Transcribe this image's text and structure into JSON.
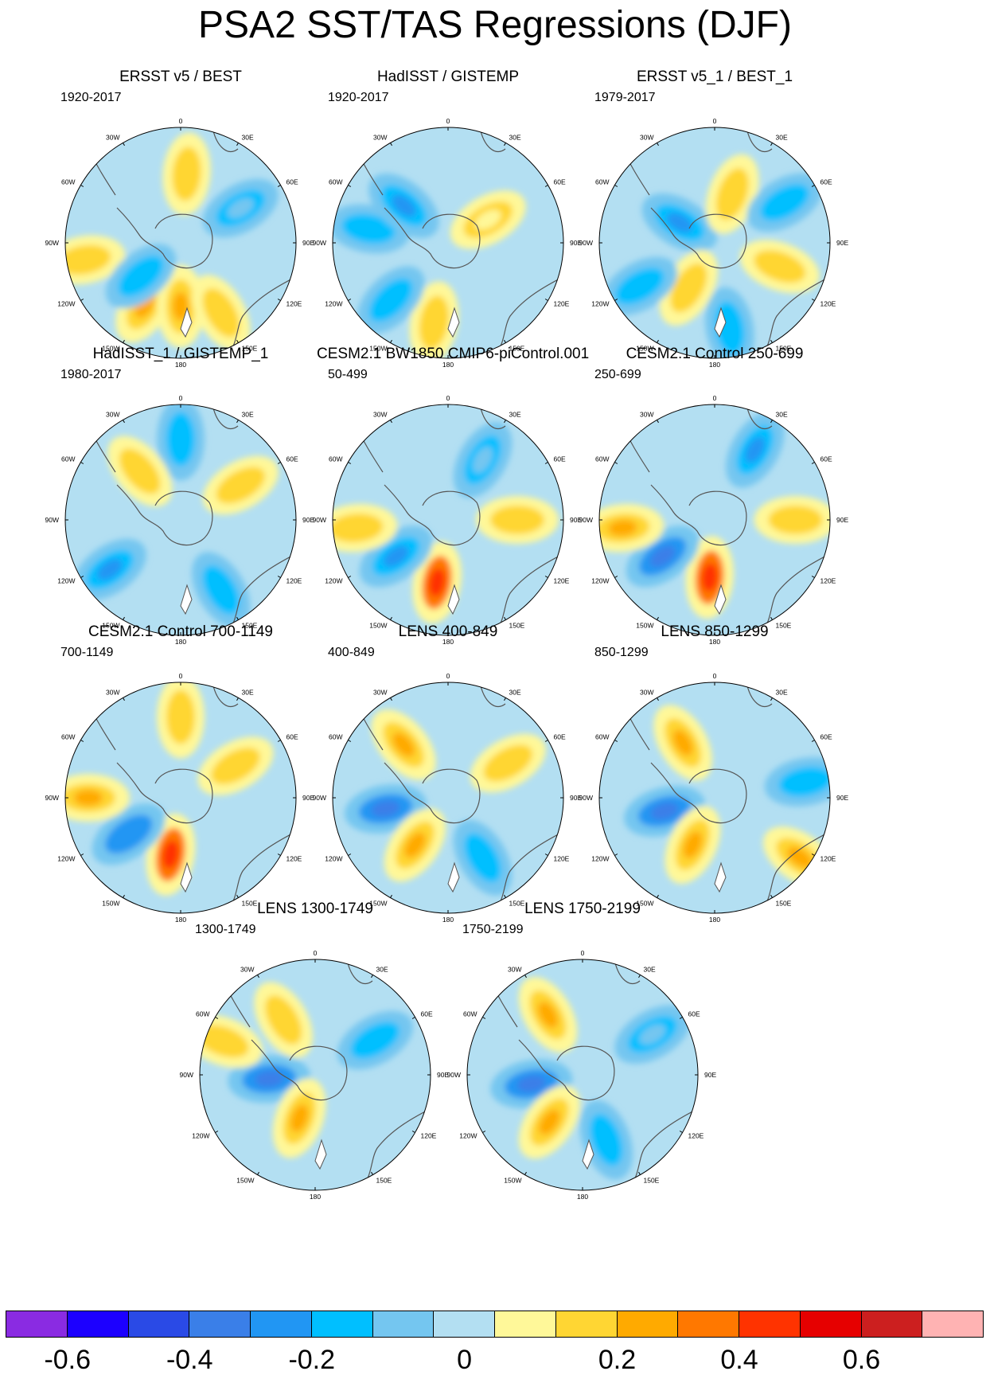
{
  "title": "PSA2 SST/TAS Regressions (DJF)",
  "chart_data": [
    {
      "type": "heatmap",
      "projection": "south polar stereographic",
      "title": "ERSST v5 / BEST",
      "period": "1920-2017",
      "longitude_labels": [
        "0",
        "30E",
        "60E",
        "90E",
        "120E",
        "150E",
        "180",
        "150W",
        "120W",
        "90W",
        "60W",
        "30W"
      ],
      "anomalies": [
        {
          "lon": 210,
          "colat": 0.62,
          "value": 0.2
        },
        {
          "lon": 180,
          "colat": 0.55,
          "value": 0.25
        },
        {
          "lon": 150,
          "colat": 0.7,
          "value": 0.15
        },
        {
          "lon": 260,
          "colat": 0.85,
          "value": 0.15
        },
        {
          "lon": 230,
          "colat": 0.45,
          "value": -0.2
        },
        {
          "lon": 5,
          "colat": 0.6,
          "value": 0.15
        },
        {
          "lon": 60,
          "colat": 0.6,
          "value": -0.1
        }
      ]
    },
    {
      "type": "heatmap",
      "projection": "south polar stereographic",
      "title": "HadISST / GISTEMP",
      "period": "1920-2017",
      "longitude_labels": [
        "0",
        "30E",
        "60E",
        "90E",
        "120E",
        "150E",
        "180",
        "150W",
        "120W",
        "90W",
        "60W",
        "30W"
      ],
      "anomalies": [
        {
          "lon": 190,
          "colat": 0.7,
          "value": 0.15
        },
        {
          "lon": 225,
          "colat": 0.7,
          "value": -0.2
        },
        {
          "lon": 280,
          "colat": 0.7,
          "value": -0.2
        },
        {
          "lon": 310,
          "colat": 0.5,
          "value": -0.25
        },
        {
          "lon": 60,
          "colat": 0.4,
          "value": 0.05
        }
      ]
    },
    {
      "type": "heatmap",
      "projection": "south polar stereographic",
      "title": "ERSST v5_1 / BEST_1",
      "period": "1979-2017",
      "longitude_labels": [
        "0",
        "30E",
        "60E",
        "90E",
        "120E",
        "150E",
        "180",
        "150W",
        "120W",
        "90W",
        "60W",
        "30W"
      ],
      "anomalies": [
        {
          "lon": 300,
          "colat": 0.35,
          "value": -0.25
        },
        {
          "lon": 20,
          "colat": 0.45,
          "value": 0.15
        },
        {
          "lon": 60,
          "colat": 0.7,
          "value": -0.15
        },
        {
          "lon": 110,
          "colat": 0.6,
          "value": 0.15
        },
        {
          "lon": 170,
          "colat": 0.75,
          "value": -0.2
        },
        {
          "lon": 210,
          "colat": 0.45,
          "value": 0.15
        },
        {
          "lon": 240,
          "colat": 0.75,
          "value": -0.15
        }
      ]
    },
    {
      "type": "heatmap",
      "projection": "south polar stereographic",
      "title": "HadISST_1 / GISTEMP_1",
      "period": "1980-2017",
      "longitude_labels": [
        "0",
        "30E",
        "60E",
        "90E",
        "120E",
        "150E",
        "180",
        "150W",
        "120W",
        "90W",
        "60W",
        "30W"
      ],
      "anomalies": [
        {
          "lon": 0,
          "colat": 0.7,
          "value": -0.2
        },
        {
          "lon": 320,
          "colat": 0.55,
          "value": 0.15
        },
        {
          "lon": 235,
          "colat": 0.75,
          "value": -0.25
        },
        {
          "lon": 150,
          "colat": 0.7,
          "value": -0.2
        },
        {
          "lon": 60,
          "colat": 0.6,
          "value": 0.1
        }
      ]
    },
    {
      "type": "heatmap",
      "projection": "south polar stereographic",
      "title": "CESM2.1 BW1850 CMIP6-piControl.001",
      "period": "50-499",
      "longitude_labels": [
        "0",
        "30E",
        "60E",
        "90E",
        "120E",
        "150E",
        "180",
        "150W",
        "120W",
        "90W",
        "60W",
        "30W"
      ],
      "anomalies": [
        {
          "lon": 190,
          "colat": 0.55,
          "value": 0.45
        },
        {
          "lon": 235,
          "colat": 0.55,
          "value": -0.25
        },
        {
          "lon": 265,
          "colat": 0.8,
          "value": 0.15
        },
        {
          "lon": 90,
          "colat": 0.6,
          "value": 0.15
        },
        {
          "lon": 30,
          "colat": 0.6,
          "value": -0.1
        }
      ]
    },
    {
      "type": "heatmap",
      "projection": "south polar stereographic",
      "title": "CESM2.1 Control 250-699",
      "period": "250-699",
      "longitude_labels": [
        "0",
        "30E",
        "60E",
        "90E",
        "120E",
        "150E",
        "180",
        "150W",
        "120W",
        "90W",
        "60W",
        "30W"
      ],
      "anomalies": [
        {
          "lon": 185,
          "colat": 0.5,
          "value": 0.45
        },
        {
          "lon": 235,
          "colat": 0.55,
          "value": -0.35
        },
        {
          "lon": 265,
          "colat": 0.8,
          "value": 0.2
        },
        {
          "lon": 30,
          "colat": 0.7,
          "value": -0.25
        },
        {
          "lon": 90,
          "colat": 0.7,
          "value": 0.15
        }
      ]
    },
    {
      "type": "heatmap",
      "projection": "south polar stereographic",
      "title": "CESM2.1 Control 700-1149",
      "period": "700-1149",
      "longitude_labels": [
        "0",
        "30E",
        "60E",
        "90E",
        "120E",
        "150E",
        "180",
        "150W",
        "120W",
        "90W",
        "60W",
        "30W"
      ],
      "anomalies": [
        {
          "lon": 190,
          "colat": 0.5,
          "value": 0.45
        },
        {
          "lon": 235,
          "colat": 0.55,
          "value": -0.3
        },
        {
          "lon": 270,
          "colat": 0.8,
          "value": 0.2
        },
        {
          "lon": 60,
          "colat": 0.55,
          "value": 0.1
        },
        {
          "lon": 0,
          "colat": 0.7,
          "value": 0.1
        }
      ]
    },
    {
      "type": "heatmap",
      "projection": "south polar stereographic",
      "title": "LENS 400-849",
      "period": "400-849",
      "longitude_labels": [
        "0",
        "30E",
        "60E",
        "90E",
        "120E",
        "150E",
        "180",
        "150W",
        "120W",
        "90W",
        "60W",
        "30W"
      ],
      "anomalies": [
        {
          "lon": 260,
          "colat": 0.55,
          "value": -0.35
        },
        {
          "lon": 215,
          "colat": 0.5,
          "value": 0.25
        },
        {
          "lon": 150,
          "colat": 0.6,
          "value": -0.15
        },
        {
          "lon": 320,
          "colat": 0.6,
          "value": 0.2
        },
        {
          "lon": 60,
          "colat": 0.6,
          "value": 0.15
        }
      ]
    },
    {
      "type": "heatmap",
      "projection": "south polar stereographic",
      "title": "LENS 850-1299",
      "period": "850-1299",
      "longitude_labels": [
        "0",
        "30E",
        "60E",
        "90E",
        "120E",
        "150E",
        "180",
        "150W",
        "120W",
        "90W",
        "60W",
        "30W"
      ],
      "anomalies": [
        {
          "lon": 255,
          "colat": 0.45,
          "value": -0.35
        },
        {
          "lon": 205,
          "colat": 0.45,
          "value": 0.2
        },
        {
          "lon": 330,
          "colat": 0.55,
          "value": 0.2
        },
        {
          "lon": 80,
          "colat": 0.8,
          "value": -0.15
        },
        {
          "lon": 125,
          "colat": 0.9,
          "value": 0.2
        }
      ]
    },
    {
      "type": "heatmap",
      "projection": "south polar stereographic",
      "title": "LENS 1300-1749",
      "period": "1300-1749",
      "longitude_labels": [
        "0",
        "30E",
        "60E",
        "90E",
        "120E",
        "150E",
        "180",
        "150W",
        "120W",
        "90W",
        "60W",
        "30W"
      ],
      "anomalies": [
        {
          "lon": 265,
          "colat": 0.4,
          "value": -0.4
        },
        {
          "lon": 200,
          "colat": 0.4,
          "value": 0.25
        },
        {
          "lon": 330,
          "colat": 0.55,
          "value": 0.15
        },
        {
          "lon": 60,
          "colat": 0.6,
          "value": -0.15
        },
        {
          "lon": 290,
          "colat": 0.85,
          "value": 0.15
        }
      ]
    },
    {
      "type": "heatmap",
      "projection": "south polar stereographic",
      "title": "LENS 1750-2199",
      "period": "1750-2199",
      "longitude_labels": [
        "0",
        "30E",
        "60E",
        "90E",
        "120E",
        "150E",
        "180",
        "150W",
        "120W",
        "90W",
        "60W",
        "30W"
      ],
      "anomalies": [
        {
          "lon": 260,
          "colat": 0.45,
          "value": -0.35
        },
        {
          "lon": 215,
          "colat": 0.5,
          "value": 0.25
        },
        {
          "lon": 330,
          "colat": 0.6,
          "value": 0.2
        },
        {
          "lon": 160,
          "colat": 0.6,
          "value": -0.15
        },
        {
          "lon": 60,
          "colat": 0.7,
          "value": -0.1
        }
      ]
    }
  ],
  "colorbar": {
    "colors": [
      "#8a2be2",
      "#1c00ff",
      "#2a4ae6",
      "#3a7fe8",
      "#2196f3",
      "#00bfff",
      "#74c6f0",
      "#b3dff2",
      "#fff899",
      "#ffd633",
      "#ffaa00",
      "#ff7800",
      "#ff3300",
      "#e60000",
      "#cc1f1f",
      "#ffb3b3"
    ],
    "levels": [
      -0.7,
      -0.6,
      -0.5,
      -0.4,
      -0.3,
      -0.2,
      -0.1,
      -0.05,
      0.05,
      0.1,
      0.2,
      0.3,
      0.4,
      0.5,
      0.6,
      0.7
    ],
    "tick_labels": [
      "-0.6",
      "-0.4",
      "-0.2",
      "0",
      "0.2",
      "0.4",
      "0.6"
    ],
    "tick_positions": [
      1,
      3,
      5,
      7.5,
      10,
      12,
      14
    ]
  }
}
